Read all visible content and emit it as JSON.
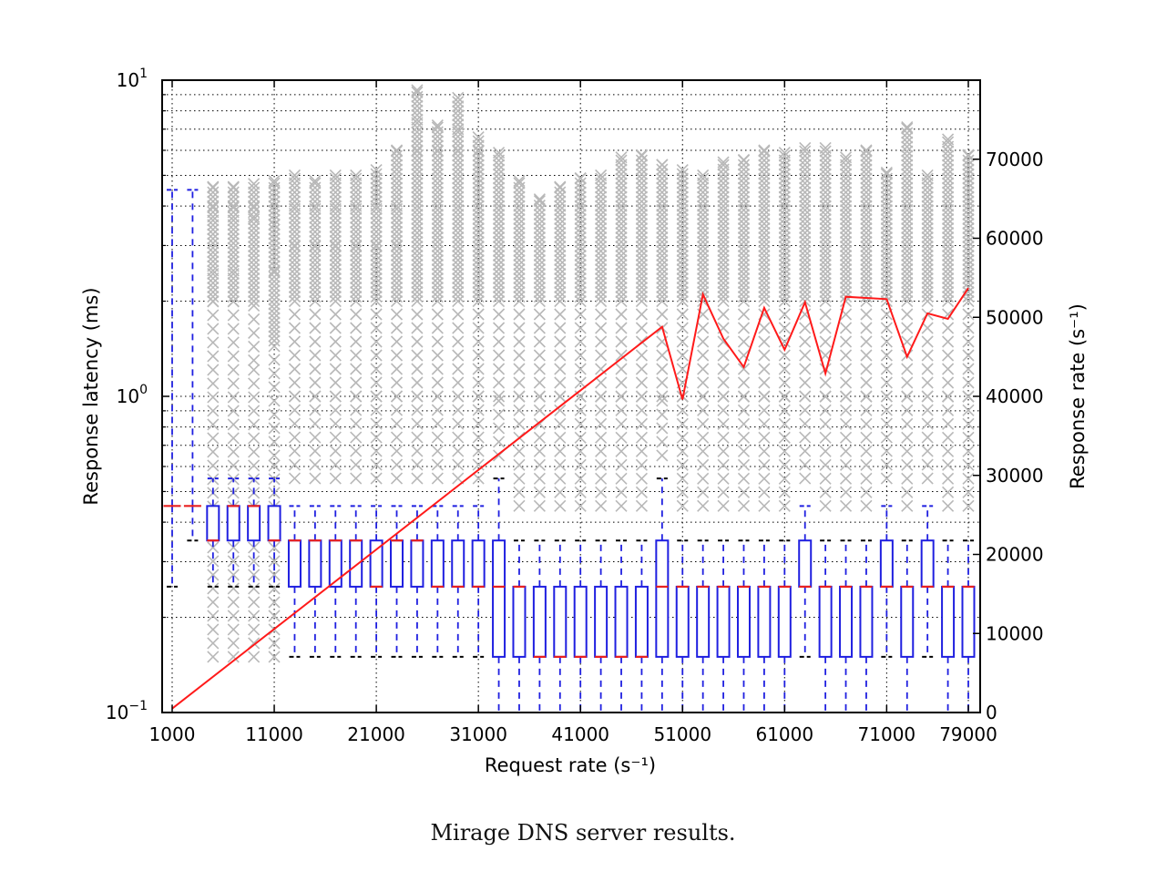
{
  "caption": "Mirage DNS server results.",
  "chart_data": {
    "type": "box",
    "xlabel": "Request rate (s⁻¹)",
    "ylabel_left": "Response latency (ms)",
    "ylabel_right": "Response rate (s⁻¹)",
    "xlim": [
      0,
      80000
    ],
    "x_ticks": [
      1000,
      11000,
      21000,
      31000,
      41000,
      51000,
      61000,
      71000,
      79000
    ],
    "x_tick_labels": [
      "1000",
      "11000",
      "21000",
      "31000",
      "41000",
      "51000",
      "61000",
      "71000",
      "79000"
    ],
    "ylim_left": [
      0.1,
      10
    ],
    "y_left_scale": "log",
    "y_left_ticks": [
      {
        "base": "10",
        "exp": "−1",
        "value": 0.1
      },
      {
        "base": "10",
        "exp": "0",
        "value": 1
      },
      {
        "base": "10",
        "exp": "1",
        "value": 10
      }
    ],
    "ylim_right": [
      0,
      80000
    ],
    "y_right_ticks": [
      0,
      10000,
      20000,
      30000,
      40000,
      50000,
      60000,
      70000
    ],
    "y_right_tick_labels": [
      "0",
      "10000",
      "20000",
      "30000",
      "40000",
      "50000",
      "60000",
      "70000"
    ],
    "grid": true,
    "colors": {
      "box": "#1f1fe0",
      "median": "#e82020",
      "response_line": "#ff1a1a",
      "fliers": "#b8b8b8",
      "caps_black": "#000000"
    },
    "boxes": [
      {
        "x": 1000,
        "wlo": 0.25,
        "q1": 0.45,
        "med": 0.45,
        "q3": 0.45,
        "whi": 4.5,
        "fliers": []
      },
      {
        "x": 3000,
        "wlo": 0.35,
        "q1": 0.45,
        "med": 0.45,
        "q3": 0.45,
        "whi": 4.5,
        "fliers": []
      },
      {
        "x": 5000,
        "wlo": 0.25,
        "q1": 0.35,
        "med": 0.35,
        "q3": 0.45,
        "whi": 0.55,
        "fliers": [
          0.15,
          2.0,
          2.5,
          3.7,
          4.0,
          4.6
        ]
      },
      {
        "x": 7000,
        "wlo": 0.25,
        "q1": 0.35,
        "med": 0.45,
        "q3": 0.45,
        "whi": 0.55,
        "fliers": [
          0.15,
          2.0,
          2.5,
          3.7,
          4.0,
          4.6
        ]
      },
      {
        "x": 9000,
        "wlo": 0.25,
        "q1": 0.35,
        "med": 0.45,
        "q3": 0.45,
        "whi": 0.55,
        "fliers": [
          0.15,
          1.3,
          2.0,
          3.7,
          4.0,
          4.7
        ]
      },
      {
        "x": 11000,
        "wlo": 0.25,
        "q1": 0.35,
        "med": 0.35,
        "q3": 0.45,
        "whi": 0.55,
        "fliers": [
          0.15,
          0.65,
          1.5,
          2.5,
          3.5,
          4.8
        ]
      },
      {
        "x": 13000,
        "wlo": 0.15,
        "q1": 0.25,
        "med": 0.35,
        "q3": 0.35,
        "whi": 0.45,
        "fliers": [
          0.55,
          1.0,
          2.0,
          3.0,
          4.0,
          5.0
        ]
      },
      {
        "x": 15000,
        "wlo": 0.15,
        "q1": 0.25,
        "med": 0.35,
        "q3": 0.35,
        "whi": 0.45,
        "fliers": [
          0.55,
          1.0,
          2.0,
          3.0,
          4.0,
          4.8
        ]
      },
      {
        "x": 17000,
        "wlo": 0.15,
        "q1": 0.25,
        "med": 0.35,
        "q3": 0.35,
        "whi": 0.45,
        "fliers": [
          0.55,
          1.0,
          2.0,
          3.0,
          4.0,
          5.0
        ]
      },
      {
        "x": 19000,
        "wlo": 0.15,
        "q1": 0.25,
        "med": 0.35,
        "q3": 0.35,
        "whi": 0.45,
        "fliers": [
          0.55,
          1.0,
          2.0,
          3.0,
          4.0,
          5.0
        ]
      },
      {
        "x": 21000,
        "wlo": 0.15,
        "q1": 0.25,
        "med": 0.25,
        "q3": 0.35,
        "whi": 0.45,
        "fliers": [
          0.55,
          1.0,
          2.0,
          3.0,
          4.0,
          5.2
        ]
      },
      {
        "x": 23000,
        "wlo": 0.15,
        "q1": 0.25,
        "med": 0.35,
        "q3": 0.35,
        "whi": 0.45,
        "fliers": [
          0.55,
          1.0,
          2.0,
          3.0,
          4.0,
          6.0
        ]
      },
      {
        "x": 25000,
        "wlo": 0.15,
        "q1": 0.25,
        "med": 0.35,
        "q3": 0.35,
        "whi": 0.45,
        "fliers": [
          0.55,
          1.0,
          2.0,
          4.0,
          6.0,
          7.5,
          9.3
        ]
      },
      {
        "x": 27000,
        "wlo": 0.15,
        "q1": 0.25,
        "med": 0.25,
        "q3": 0.35,
        "whi": 0.45,
        "fliers": [
          0.55,
          1.0,
          2.0,
          4.0,
          6.0,
          7.2
        ]
      },
      {
        "x": 29000,
        "wlo": 0.15,
        "q1": 0.25,
        "med": 0.25,
        "q3": 0.35,
        "whi": 0.45,
        "fliers": [
          0.55,
          1.0,
          2.0,
          4.0,
          6.0,
          7.0,
          8.8
        ]
      },
      {
        "x": 31000,
        "wlo": 0.15,
        "q1": 0.25,
        "med": 0.25,
        "q3": 0.35,
        "whi": 0.45,
        "fliers": [
          0.55,
          1.0,
          2.0,
          4.0,
          6.0,
          6.6
        ]
      },
      {
        "x": 33000,
        "wlo": 0.1,
        "q1": 0.15,
        "med": 0.25,
        "q3": 0.35,
        "whi": 0.55,
        "fliers": [
          0.65,
          1.0,
          2.0,
          4.0,
          5.9
        ]
      },
      {
        "x": 35000,
        "wlo": 0.1,
        "q1": 0.15,
        "med": 0.25,
        "q3": 0.25,
        "whi": 0.35,
        "fliers": [
          0.45,
          1.0,
          2.0,
          4.0,
          4.8
        ]
      },
      {
        "x": 37000,
        "wlo": 0.1,
        "q1": 0.15,
        "med": 0.15,
        "q3": 0.25,
        "whi": 0.35,
        "fliers": [
          0.45,
          1.0,
          2.0,
          4.2
        ]
      },
      {
        "x": 39000,
        "wlo": 0.1,
        "q1": 0.15,
        "med": 0.15,
        "q3": 0.25,
        "whi": 0.35,
        "fliers": [
          0.45,
          1.0,
          2.0,
          4.0,
          4.6
        ]
      },
      {
        "x": 41000,
        "wlo": 0.1,
        "q1": 0.15,
        "med": 0.15,
        "q3": 0.25,
        "whi": 0.35,
        "fliers": [
          0.45,
          1.0,
          2.0,
          4.0,
          4.9
        ]
      },
      {
        "x": 43000,
        "wlo": 0.1,
        "q1": 0.15,
        "med": 0.15,
        "q3": 0.25,
        "whi": 0.35,
        "fliers": [
          0.45,
          1.0,
          2.0,
          4.0,
          5.0
        ]
      },
      {
        "x": 45000,
        "wlo": 0.1,
        "q1": 0.15,
        "med": 0.15,
        "q3": 0.25,
        "whi": 0.35,
        "fliers": [
          0.45,
          1.0,
          2.0,
          4.0,
          5.7
        ]
      },
      {
        "x": 47000,
        "wlo": 0.1,
        "q1": 0.15,
        "med": 0.15,
        "q3": 0.25,
        "whi": 0.35,
        "fliers": [
          0.45,
          1.0,
          2.0,
          4.0,
          5.8
        ]
      },
      {
        "x": 49000,
        "wlo": 0.1,
        "q1": 0.15,
        "med": 0.25,
        "q3": 0.35,
        "whi": 0.55,
        "fliers": [
          0.65,
          1.0,
          2.0,
          4.0,
          5.4
        ]
      },
      {
        "x": 51000,
        "wlo": 0.1,
        "q1": 0.15,
        "med": 0.25,
        "q3": 0.25,
        "whi": 0.35,
        "fliers": [
          0.45,
          1.0,
          2.0,
          4.0,
          5.2
        ]
      },
      {
        "x": 53000,
        "wlo": 0.1,
        "q1": 0.15,
        "med": 0.25,
        "q3": 0.25,
        "whi": 0.35,
        "fliers": [
          0.45,
          1.0,
          2.0,
          4.0,
          5.0
        ]
      },
      {
        "x": 55000,
        "wlo": 0.1,
        "q1": 0.15,
        "med": 0.25,
        "q3": 0.25,
        "whi": 0.35,
        "fliers": [
          0.45,
          1.0,
          2.0,
          4.0,
          5.5
        ]
      },
      {
        "x": 57000,
        "wlo": 0.1,
        "q1": 0.15,
        "med": 0.25,
        "q3": 0.25,
        "whi": 0.35,
        "fliers": [
          0.45,
          1.0,
          2.0,
          4.0,
          5.6
        ]
      },
      {
        "x": 59000,
        "wlo": 0.1,
        "q1": 0.15,
        "med": 0.25,
        "q3": 0.25,
        "whi": 0.35,
        "fliers": [
          0.45,
          1.0,
          2.0,
          4.0,
          6.0
        ]
      },
      {
        "x": 61000,
        "wlo": 0.1,
        "q1": 0.15,
        "med": 0.25,
        "q3": 0.25,
        "whi": 0.35,
        "fliers": [
          0.45,
          1.0,
          2.0,
          4.0,
          5.9
        ]
      },
      {
        "x": 63000,
        "wlo": 0.15,
        "q1": 0.25,
        "med": 0.25,
        "q3": 0.35,
        "whi": 0.45,
        "fliers": [
          0.55,
          1.0,
          2.0,
          4.0,
          6.1
        ]
      },
      {
        "x": 65000,
        "wlo": 0.1,
        "q1": 0.15,
        "med": 0.25,
        "q3": 0.25,
        "whi": 0.35,
        "fliers": [
          0.45,
          1.0,
          2.0,
          4.0,
          6.1
        ]
      },
      {
        "x": 67000,
        "wlo": 0.1,
        "q1": 0.15,
        "med": 0.25,
        "q3": 0.25,
        "whi": 0.35,
        "fliers": [
          0.45,
          1.0,
          2.0,
          4.0,
          5.7
        ]
      },
      {
        "x": 69000,
        "wlo": 0.1,
        "q1": 0.15,
        "med": 0.25,
        "q3": 0.25,
        "whi": 0.35,
        "fliers": [
          0.45,
          1.0,
          2.0,
          4.0,
          6.0
        ]
      },
      {
        "x": 71000,
        "wlo": 0.15,
        "q1": 0.25,
        "med": 0.25,
        "q3": 0.35,
        "whi": 0.45,
        "fliers": [
          0.55,
          1.0,
          2.0,
          4.0,
          5.1
        ]
      },
      {
        "x": 73000,
        "wlo": 0.1,
        "q1": 0.15,
        "med": 0.25,
        "q3": 0.25,
        "whi": 0.35,
        "fliers": [
          0.45,
          1.0,
          2.0,
          4.0,
          7.1
        ]
      },
      {
        "x": 75000,
        "wlo": 0.15,
        "q1": 0.25,
        "med": 0.25,
        "q3": 0.35,
        "whi": 0.45,
        "fliers": [
          0.55,
          1.0,
          2.0,
          4.0,
          5.0
        ]
      },
      {
        "x": 77000,
        "wlo": 0.1,
        "q1": 0.15,
        "med": 0.25,
        "q3": 0.25,
        "whi": 0.35,
        "fliers": [
          0.45,
          1.0,
          2.0,
          4.0,
          6.5
        ]
      },
      {
        "x": 79000,
        "wlo": 0.1,
        "q1": 0.15,
        "med": 0.25,
        "q3": 0.25,
        "whi": 0.35,
        "fliers": [
          0.45,
          1.0,
          2.0,
          4.0,
          5.8
        ]
      }
    ],
    "response_rate_series": {
      "axis": "right",
      "x": [
        1000,
        49000,
        51000,
        53000,
        55000,
        57000,
        59000,
        61000,
        63000,
        65000,
        67000,
        71000,
        73000,
        75000,
        77000,
        79000
      ],
      "y": [
        500,
        48800,
        39600,
        52900,
        47300,
        43700,
        51200,
        45900,
        51900,
        42900,
        52600,
        52300,
        45000,
        50500,
        49800,
        53700
      ]
    }
  }
}
